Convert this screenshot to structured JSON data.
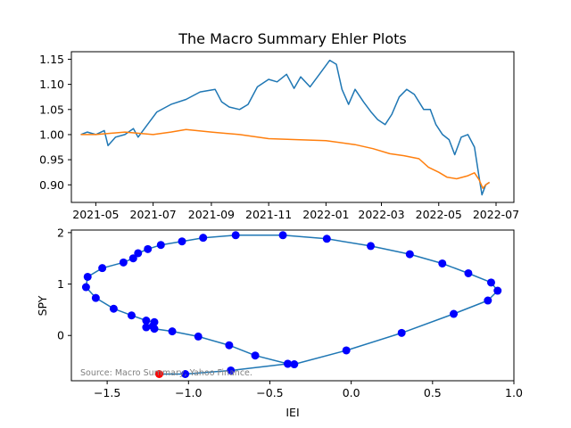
{
  "colors": {
    "series1": "#1f77b4",
    "series2": "#ff7f0e",
    "ehler_line": "#1f77b4",
    "points": "#0000ff",
    "start_point": "#ff0000"
  },
  "chart_data": [
    {
      "type": "line",
      "title": "The Macro Summary Ehler Plots",
      "xlabel": "",
      "ylabel": "",
      "x_range": [
        "2021-04-05",
        "2022-07-20"
      ],
      "ylim": [
        0.865,
        1.165
      ],
      "x_ticks": [
        "2021-05",
        "2021-07",
        "2021-09",
        "2021-11",
        "2022-01",
        "2022-03",
        "2022-05",
        "2022-07"
      ],
      "y_ticks": [
        "0.90",
        "0.95",
        "1.00",
        "1.05",
        "1.10",
        "1.15"
      ],
      "grid": false,
      "series": [
        {
          "color": "#1f77b4",
          "points": [
            [
              "2021-04-15",
              1.0
            ],
            [
              "2021-04-22",
              1.005
            ],
            [
              "2021-05-01",
              1.0
            ],
            [
              "2021-05-10",
              1.008
            ],
            [
              "2021-05-14",
              0.978
            ],
            [
              "2021-05-22",
              0.995
            ],
            [
              "2021-06-01",
              1.0
            ],
            [
              "2021-06-10",
              1.012
            ],
            [
              "2021-06-15",
              0.995
            ],
            [
              "2021-06-25",
              1.02
            ],
            [
              "2021-07-05",
              1.045
            ],
            [
              "2021-07-20",
              1.06
            ],
            [
              "2021-08-05",
              1.07
            ],
            [
              "2021-08-20",
              1.085
            ],
            [
              "2021-09-05",
              1.09
            ],
            [
              "2021-09-12",
              1.065
            ],
            [
              "2021-09-20",
              1.055
            ],
            [
              "2021-10-01",
              1.05
            ],
            [
              "2021-10-10",
              1.06
            ],
            [
              "2021-10-20",
              1.095
            ],
            [
              "2021-11-01",
              1.11
            ],
            [
              "2021-11-10",
              1.105
            ],
            [
              "2021-11-20",
              1.12
            ],
            [
              "2021-11-28",
              1.092
            ],
            [
              "2021-12-05",
              1.115
            ],
            [
              "2021-12-15",
              1.095
            ],
            [
              "2021-12-25",
              1.12
            ],
            [
              "2022-01-05",
              1.148
            ],
            [
              "2022-01-12",
              1.14
            ],
            [
              "2022-01-18",
              1.09
            ],
            [
              "2022-01-25",
              1.06
            ],
            [
              "2022-02-01",
              1.09
            ],
            [
              "2022-02-10",
              1.065
            ],
            [
              "2022-02-18",
              1.045
            ],
            [
              "2022-02-25",
              1.03
            ],
            [
              "2022-03-05",
              1.02
            ],
            [
              "2022-03-12",
              1.04
            ],
            [
              "2022-03-20",
              1.075
            ],
            [
              "2022-03-28",
              1.09
            ],
            [
              "2022-04-05",
              1.08
            ],
            [
              "2022-04-15",
              1.05
            ],
            [
              "2022-04-22",
              1.05
            ],
            [
              "2022-04-28",
              1.02
            ],
            [
              "2022-05-05",
              1.0
            ],
            [
              "2022-05-12",
              0.99
            ],
            [
              "2022-05-18",
              0.96
            ],
            [
              "2022-05-25",
              0.995
            ],
            [
              "2022-06-01",
              1.0
            ],
            [
              "2022-06-08",
              0.975
            ],
            [
              "2022-06-13",
              0.915
            ],
            [
              "2022-06-16",
              0.88
            ],
            [
              "2022-06-20",
              0.9
            ],
            [
              "2022-06-24",
              0.905
            ]
          ]
        },
        {
          "color": "#ff7f0e",
          "points": [
            [
              "2021-04-15",
              1.0
            ],
            [
              "2021-05-01",
              1.0
            ],
            [
              "2021-06-01",
              1.005
            ],
            [
              "2021-07-01",
              1.0
            ],
            [
              "2021-07-20",
              1.005
            ],
            [
              "2021-08-05",
              1.01
            ],
            [
              "2021-09-01",
              1.005
            ],
            [
              "2021-10-01",
              1.0
            ],
            [
              "2021-11-01",
              0.992
            ],
            [
              "2021-12-01",
              0.99
            ],
            [
              "2022-01-01",
              0.988
            ],
            [
              "2022-02-01",
              0.98
            ],
            [
              "2022-02-20",
              0.972
            ],
            [
              "2022-03-10",
              0.962
            ],
            [
              "2022-03-25",
              0.958
            ],
            [
              "2022-04-10",
              0.952
            ],
            [
              "2022-04-20",
              0.935
            ],
            [
              "2022-05-01",
              0.925
            ],
            [
              "2022-05-10",
              0.915
            ],
            [
              "2022-05-20",
              0.912
            ],
            [
              "2022-06-01",
              0.918
            ],
            [
              "2022-06-08",
              0.924
            ],
            [
              "2022-06-13",
              0.91
            ],
            [
              "2022-06-17",
              0.893
            ],
            [
              "2022-06-20",
              0.9
            ],
            [
              "2022-06-24",
              0.905
            ]
          ]
        }
      ]
    },
    {
      "type": "scatter",
      "title": "",
      "xlabel": "IEI",
      "ylabel": "SPY",
      "xlim": [
        -1.72,
        1.0
      ],
      "ylim": [
        -0.88,
        2.05
      ],
      "x_ticks": [
        -1.5,
        -1.0,
        -0.5,
        0.0,
        0.5,
        1.0
      ],
      "x_tick_labels": [
        "−1.5",
        "−1.0",
        "−0.5",
        "0.0",
        "0.5",
        "1.0"
      ],
      "y_ticks": [
        0,
        1,
        2
      ],
      "y_tick_labels": [
        "0",
        "1",
        "2"
      ],
      "grid": false,
      "points": [
        [
          -1.18,
          -0.75
        ],
        [
          -1.02,
          -0.75
        ],
        [
          -0.74,
          -0.68
        ],
        [
          -0.39,
          -0.55
        ],
        [
          -0.35,
          -0.56
        ],
        [
          -0.03,
          -0.29
        ],
        [
          0.31,
          0.05
        ],
        [
          0.63,
          0.42
        ],
        [
          0.84,
          0.68
        ],
        [
          0.9,
          0.87
        ],
        [
          0.86,
          1.03
        ],
        [
          0.72,
          1.21
        ],
        [
          0.56,
          1.4
        ],
        [
          0.36,
          1.58
        ],
        [
          0.12,
          1.74
        ],
        [
          -0.15,
          1.88
        ],
        [
          -0.42,
          1.95
        ],
        [
          -0.71,
          1.95
        ],
        [
          -0.91,
          1.9
        ],
        [
          -1.04,
          1.83
        ],
        [
          -1.17,
          1.76
        ],
        [
          -1.25,
          1.68
        ],
        [
          -1.31,
          1.6
        ],
        [
          -1.34,
          1.5
        ],
        [
          -1.4,
          1.42
        ],
        [
          -1.53,
          1.31
        ],
        [
          -1.62,
          1.14
        ],
        [
          -1.63,
          0.94
        ],
        [
          -1.57,
          0.73
        ],
        [
          -1.46,
          0.52
        ],
        [
          -1.35,
          0.39
        ],
        [
          -1.26,
          0.29
        ],
        [
          -1.21,
          0.26
        ],
        [
          -1.22,
          0.18
        ],
        [
          -1.26,
          0.16
        ],
        [
          -1.21,
          0.13
        ],
        [
          -1.1,
          0.08
        ],
        [
          -0.94,
          -0.02
        ],
        [
          -0.75,
          -0.19
        ],
        [
          -0.59,
          -0.39
        ],
        [
          -0.39,
          -0.55
        ]
      ],
      "start_index": 0,
      "annotation": "Source: Macro Summary, Yahoo Finance."
    }
  ]
}
